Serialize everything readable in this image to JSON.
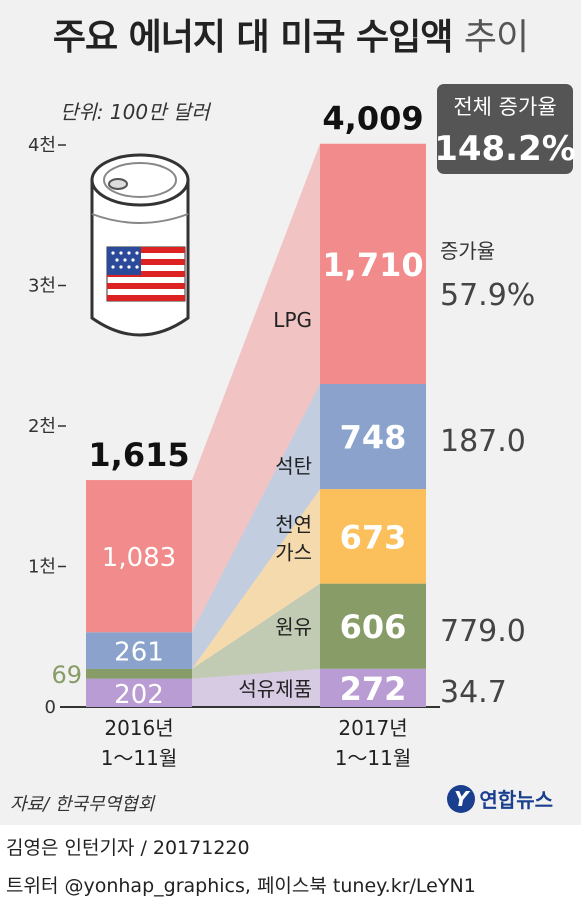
{
  "title_main": "주요 에너지 대 미국 수입액",
  "title_suffix": "추이",
  "unit": "단위: 100만 달러",
  "total_growth": {
    "label": "전체 증가율",
    "value": "148.2%"
  },
  "growth_header": "증가율",
  "source": "자료/ 한국무역협회",
  "footer": {
    "reporter": "김영은 인턴기자 / 20171220",
    "social": "트위터 @yonhap_graphics, 페이스북 tuney.kr/LeYN1"
  },
  "logo_text": "연합뉴스",
  "logo_letter": "Y",
  "colors": {
    "LPG": "#f28b8b",
    "석탄": "#8aa2cc",
    "천연가스": "#fbbf5b",
    "원유": "#879c66",
    "석유제품": "#b99cd3",
    "growth_box": "#555555"
  },
  "chart_data": {
    "type": "bar",
    "stacked": true,
    "categories": [
      "2016년 1~11월",
      "2017년 1~11월"
    ],
    "category_lines": [
      [
        "2016년",
        "1～11월"
      ],
      [
        "2017년",
        "1～11월"
      ]
    ],
    "totals": [
      1615,
      4009
    ],
    "total_labels": [
      "1,615",
      "4,009"
    ],
    "ylim": [
      0,
      4000
    ],
    "yticks": [
      {
        "value": 0,
        "label": "0"
      },
      {
        "value": 1000,
        "label": "1천"
      },
      {
        "value": 2000,
        "label": "2천"
      },
      {
        "value": 3000,
        "label": "3천"
      },
      {
        "value": 4000,
        "label": "4천"
      }
    ],
    "series": [
      {
        "name": "석유제품",
        "label_lines": [
          "석유제품"
        ],
        "values": [
          202,
          272
        ],
        "value_labels": [
          "202",
          "272"
        ],
        "growth": "34.7"
      },
      {
        "name": "원유",
        "label_lines": [
          "원유"
        ],
        "values": [
          69,
          606
        ],
        "value_labels": [
          "69",
          "606"
        ],
        "growth": "779.0"
      },
      {
        "name": "천연가스",
        "label_lines": [
          "천연",
          "가스"
        ],
        "values": [
          0,
          673
        ],
        "value_labels": [
          "",
          "673"
        ],
        "growth": ""
      },
      {
        "name": "석탄",
        "label_lines": [
          "석탄"
        ],
        "values": [
          261,
          748
        ],
        "value_labels": [
          "261",
          "748"
        ],
        "growth": "187.0"
      },
      {
        "name": "LPG",
        "label_lines": [
          "LPG"
        ],
        "values": [
          1083,
          1710
        ],
        "value_labels": [
          "1,083",
          "1,710"
        ],
        "growth": "57.9%"
      }
    ]
  }
}
